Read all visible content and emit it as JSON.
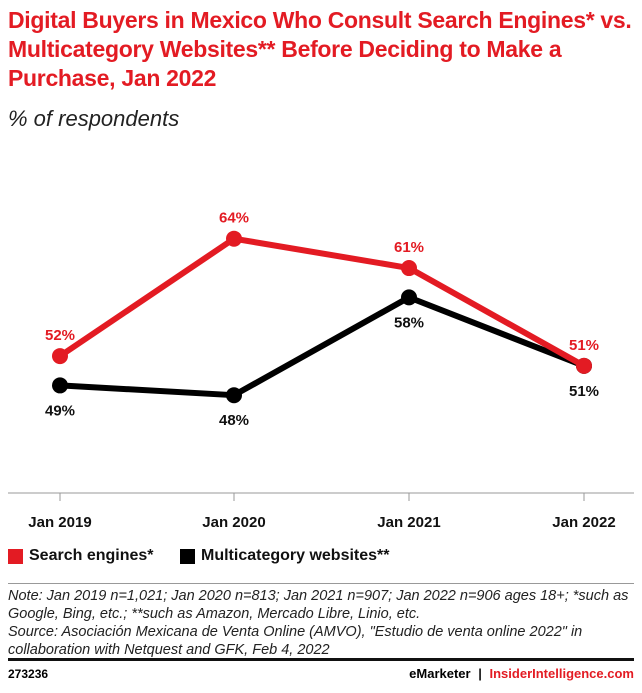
{
  "title": "Digital Buyers in Mexico Who Consult Search Engines* vs. Multicategory Websites** Before Deciding to Make a Purchase, Jan 2022",
  "subtitle": "% of respondents",
  "chart_data": {
    "type": "line",
    "categories": [
      "Jan 2019",
      "Jan 2020",
      "Jan 2021",
      "Jan 2022"
    ],
    "series": [
      {
        "name": "Search engines*",
        "values": [
          52,
          64,
          61,
          51
        ],
        "color": "#e31b23",
        "labels": [
          "52%",
          "64%",
          "61%",
          "51%"
        ]
      },
      {
        "name": "Multicategory websites**",
        "values": [
          49,
          48,
          58,
          51
        ],
        "color": "#000000",
        "labels": [
          "49%",
          "48%",
          "58%",
          "51%"
        ]
      }
    ],
    "ylim": [
      38,
      70
    ],
    "grid": false,
    "legend": "bottom-left"
  },
  "note": "Note: Jan 2019 n=1,021; Jan 2020 n=813; Jan 2021 n=907; Jan 2022 n=906 ages 18+; *such as Google, Bing, etc.; **such as Amazon, Mercado Libre, Linio, etc.",
  "source": "Source: Asociación Mexicana de Venta Online (AMVO), \"Estudio de venta online 2022\" in collaboration with Netquest and GFK, Feb 4, 2022",
  "footer": {
    "id": "273236",
    "brand1": "eMarketer",
    "sep": "|",
    "brand2": "InsiderIntelligence.com"
  }
}
